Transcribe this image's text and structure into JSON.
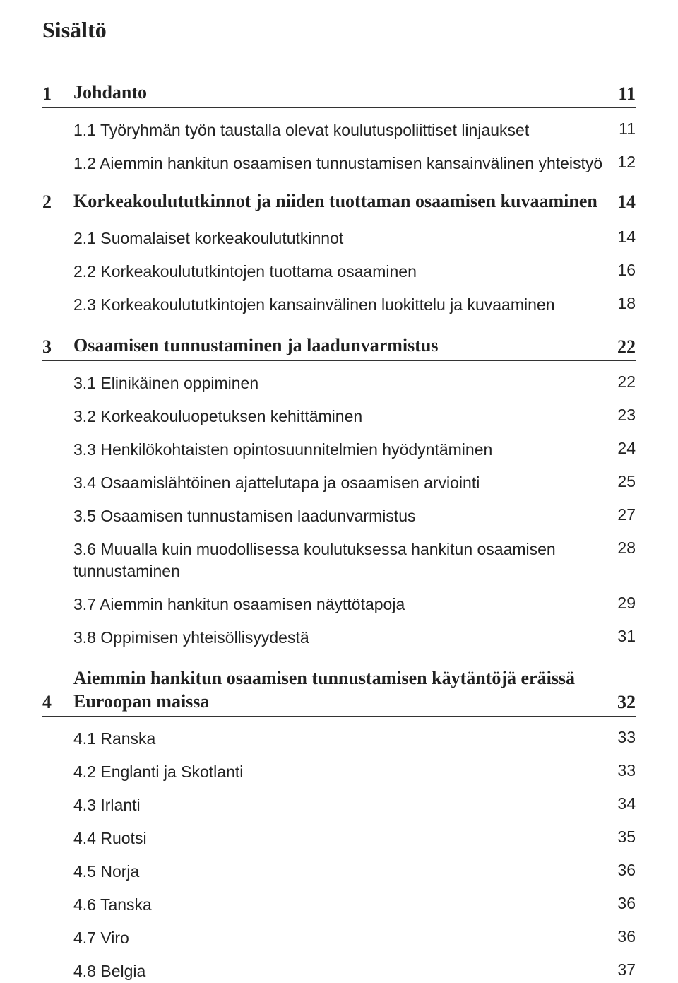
{
  "doc_title": "Sisältö",
  "colors": {
    "background": "#ffffff",
    "text": "#222222",
    "rule": "#333333"
  },
  "typography": {
    "title_fontsize": 32,
    "chapter_fontsize": 26,
    "section_fontsize": 23,
    "chapter_font": "Georgia serif bold",
    "section_font": "Arial sans-serif regular"
  },
  "chapters": [
    {
      "num": "1",
      "title": "Johdanto",
      "page": "11",
      "sections": [
        {
          "label": "1.1 Työryhmän työn taustalla olevat koulutuspoliittiset linjaukset",
          "page": "11"
        },
        {
          "label": "1.2 Aiemmin hankitun osaamisen tunnustamisen kansainvälinen yhteistyö",
          "page": "12"
        }
      ]
    },
    {
      "num": "2",
      "title": "Korkeakoulututkinnot ja niiden tuottaman osaamisen kuvaaminen",
      "page": "14",
      "sections": [
        {
          "label": "2.1 Suomalaiset korkeakoulututkinnot",
          "page": "14"
        },
        {
          "label": "2.2 Korkeakoulututkintojen tuottama osaaminen",
          "page": "16"
        },
        {
          "label": "2.3 Korkeakoulututkintojen kansainvälinen luokittelu ja kuvaaminen",
          "page": "18"
        }
      ]
    },
    {
      "num": "3",
      "title": "Osaamisen tunnustaminen ja laadunvarmistus",
      "page": "22",
      "sections": [
        {
          "label": "3.1 Elinikäinen oppiminen",
          "page": "22"
        },
        {
          "label": "3.2 Korkeakouluopetuksen kehittäminen",
          "page": "23"
        },
        {
          "label": "3.3 Henkilökohtaisten opintosuunnitelmien hyödyntäminen",
          "page": "24"
        },
        {
          "label": "3.4 Osaamislähtöinen ajattelutapa ja osaamisen arviointi",
          "page": "25"
        },
        {
          "label": "3.5 Osaamisen tunnustamisen laadunvarmistus",
          "page": "27"
        },
        {
          "label": "3.6 Muualla kuin muodollisessa koulutuksessa hankitun osaamisen tunnustaminen",
          "page": "28"
        },
        {
          "label": "3.7 Aiemmin hankitun osaamisen näyttötapoja",
          "page": "29"
        },
        {
          "label": "3.8 Oppimisen yhteisöllisyydestä",
          "page": "31"
        }
      ]
    },
    {
      "num": "4",
      "title": "Aiemmin hankitun osaamisen tunnustamisen käytäntöjä eräissä Euroopan maissa",
      "page": "32",
      "sections": [
        {
          "label": "4.1 Ranska",
          "page": "33"
        },
        {
          "label": "4.2 Englanti ja Skotlanti",
          "page": "33"
        },
        {
          "label": "4.3 Irlanti",
          "page": "34"
        },
        {
          "label": "4.4 Ruotsi",
          "page": "35"
        },
        {
          "label": "4.5 Norja",
          "page": "36"
        },
        {
          "label": "4.6 Tanska",
          "page": "36"
        },
        {
          "label": "4.7 Viro",
          "page": "36"
        },
        {
          "label": "4.8 Belgia",
          "page": "37"
        }
      ]
    }
  ]
}
